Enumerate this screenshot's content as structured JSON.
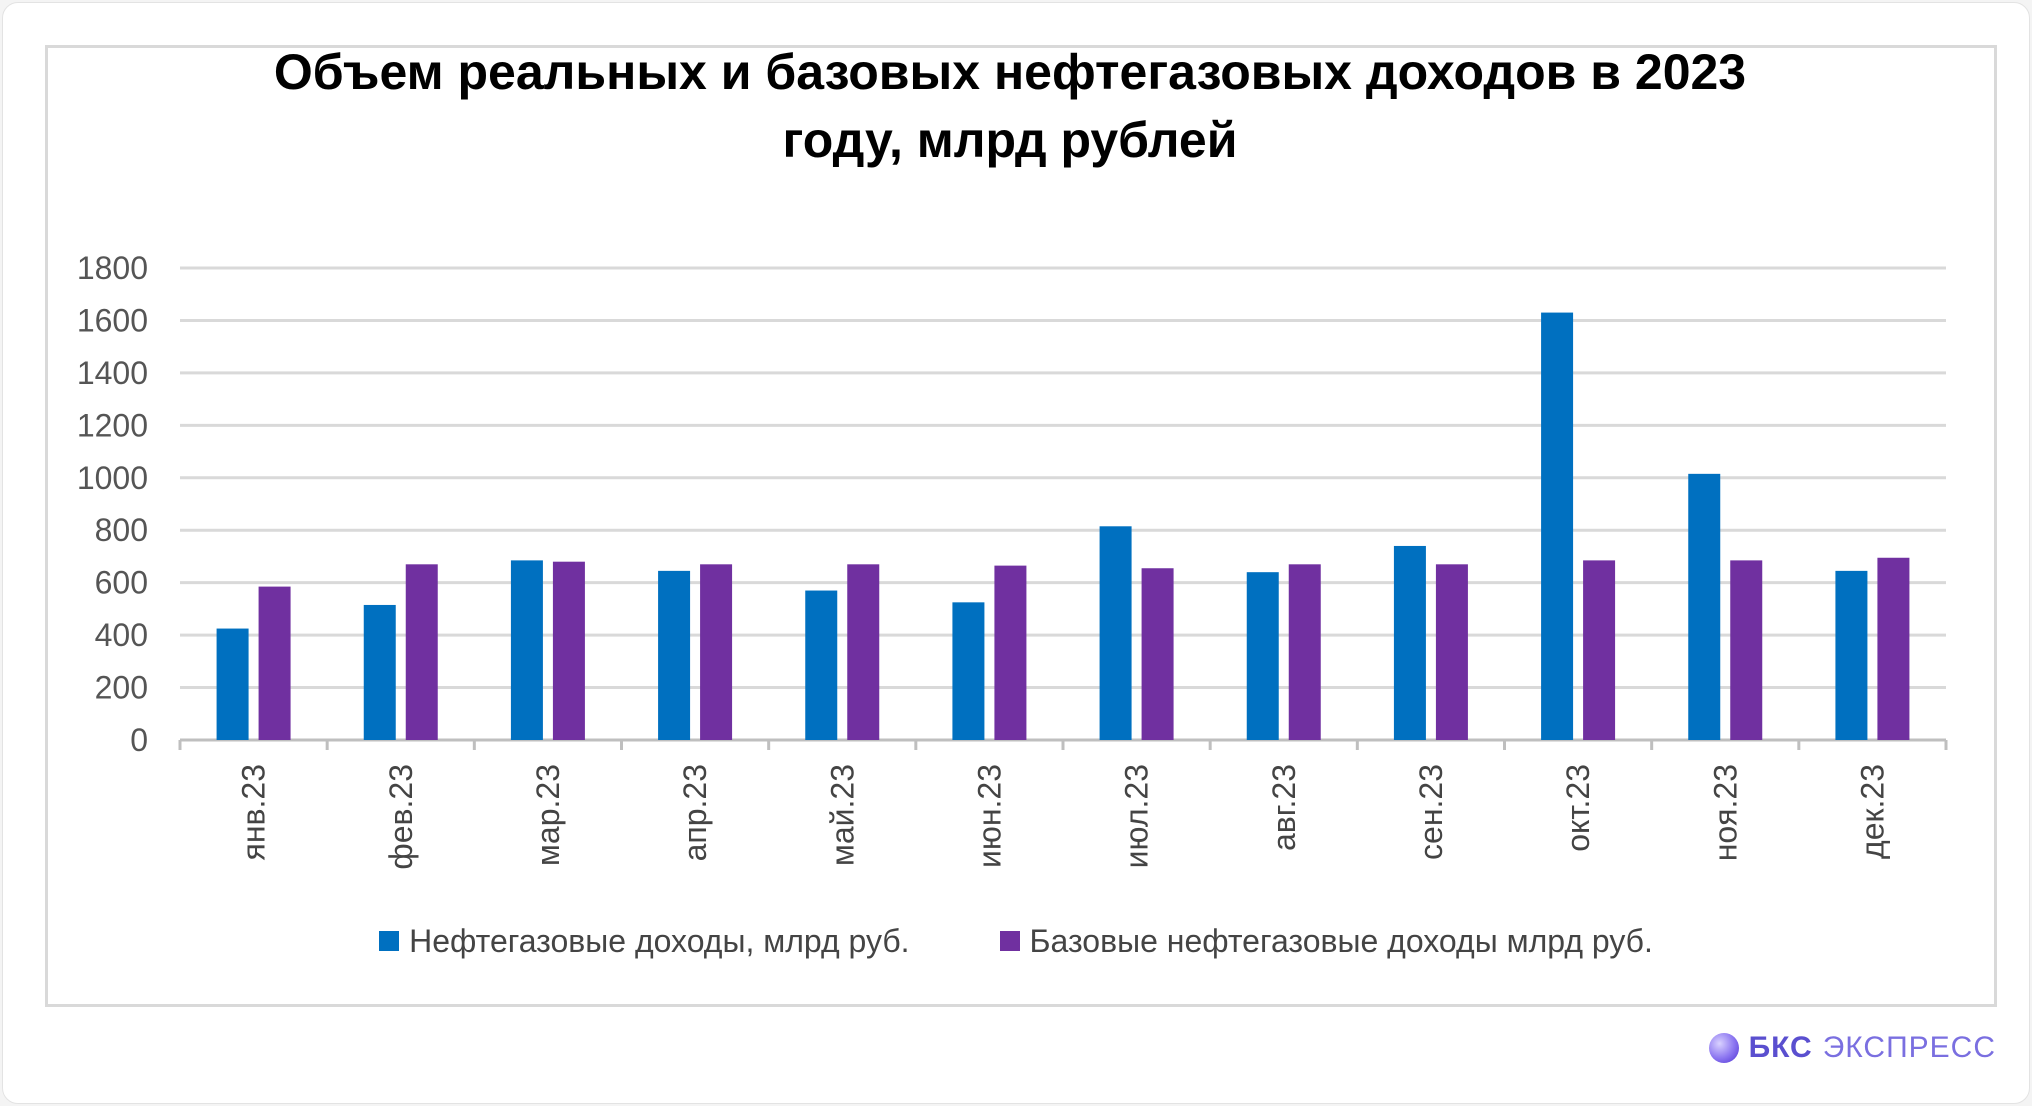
{
  "chart_data": {
    "type": "bar",
    "title": "Объем реальных и базовых нефтегазовых доходов в 2023 году, млрд рублей",
    "title_lines": [
      "Объем реальных и базовых нефтегазовых доходов в 2023",
      "году, млрд рублей"
    ],
    "categories": [
      "янв.23",
      "фев.23",
      "мар.23",
      "апр.23",
      "май.23",
      "июн.23",
      "июл.23",
      "авг.23",
      "сен.23",
      "окт.23",
      "ноя.23",
      "дек.23"
    ],
    "series": [
      {
        "name": "Нефтегазовые доходы, млрд руб.",
        "color": "#0070c0",
        "values": [
          425,
          515,
          685,
          645,
          570,
          525,
          815,
          640,
          740,
          1630,
          1015,
          645
        ]
      },
      {
        "name": "Базовые нефтегазовые доходы млрд руб.",
        "color": "#7030a0",
        "values": [
          585,
          670,
          680,
          670,
          670,
          665,
          655,
          670,
          670,
          685,
          685,
          695
        ]
      }
    ],
    "xlabel": "",
    "ylabel": "",
    "ylim": [
      0,
      1800
    ],
    "yticks": [
      0,
      200,
      400,
      600,
      800,
      1000,
      1200,
      1400,
      1600,
      1800
    ],
    "grid": true,
    "legend_position": "bottom"
  },
  "brand": {
    "name": "БКС",
    "sub": "ЭКСПРЕСС"
  }
}
